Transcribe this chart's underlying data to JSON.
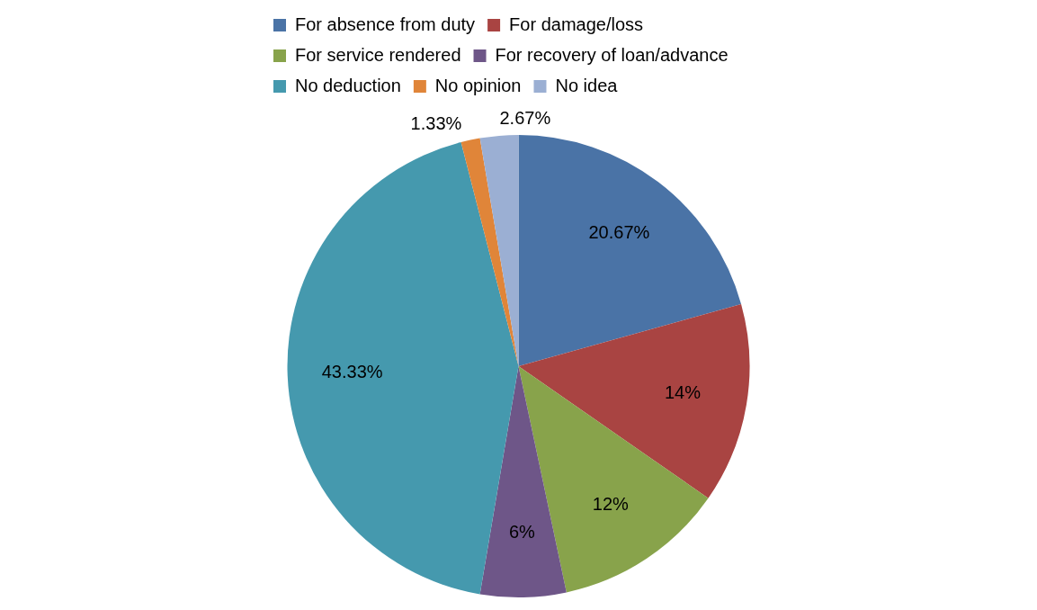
{
  "chart_data": {
    "type": "pie",
    "categories": [
      "For absence from duty",
      "For damage/loss",
      "For service rendered",
      "For recovery of loan/advance",
      "No deduction",
      "No opinion",
      "No idea"
    ],
    "values": [
      20.67,
      14,
      12,
      6,
      43.33,
      1.33,
      2.67
    ],
    "value_labels": [
      "20.67%",
      "14%",
      "12%",
      "6%",
      "43.33%",
      "1.33%",
      "2.67%"
    ],
    "colors": [
      "#4a73a6",
      "#a94442",
      "#88a34b",
      "#6e5688",
      "#4599ae",
      "#e08539",
      "#9bafd3"
    ],
    "legend": "top"
  }
}
